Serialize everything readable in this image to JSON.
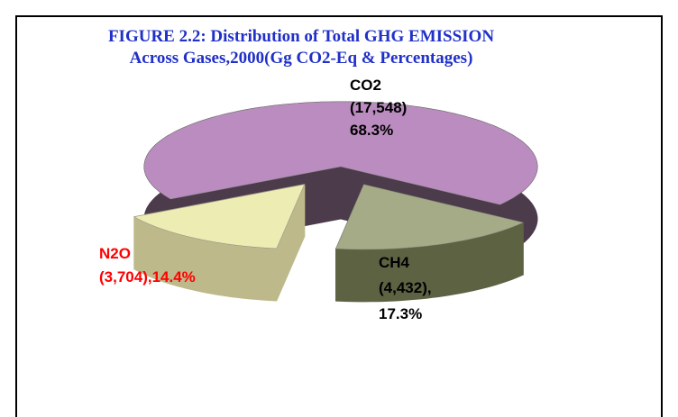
{
  "chart_data": {
    "type": "pie3d",
    "title": [
      "FIGURE 2.2: Distribution of Total GHG EMISSION",
      "Across  Gases,2000(Gg CO2-Eq & Percentages)"
    ],
    "categories": [
      "CO2",
      "CH4",
      "N2O"
    ],
    "values": [
      68.3,
      17.3,
      14.4
    ],
    "value_labels": [
      "68.3%",
      "17.3%",
      "14.4%"
    ],
    "gg_values": [
      17548,
      4432,
      3704
    ],
    "gg_labels": [
      "(17,548)",
      "(4,432),",
      "(3,704),"
    ],
    "colors": [
      "#ba8cbf",
      "#a4ab86",
      "#edecb2"
    ],
    "side_colors": [
      "#4c3b4b",
      "#5c6242",
      "#bdb98a"
    ],
    "label_colors": [
      "#000000",
      "#000000",
      "#ff0000"
    ]
  }
}
